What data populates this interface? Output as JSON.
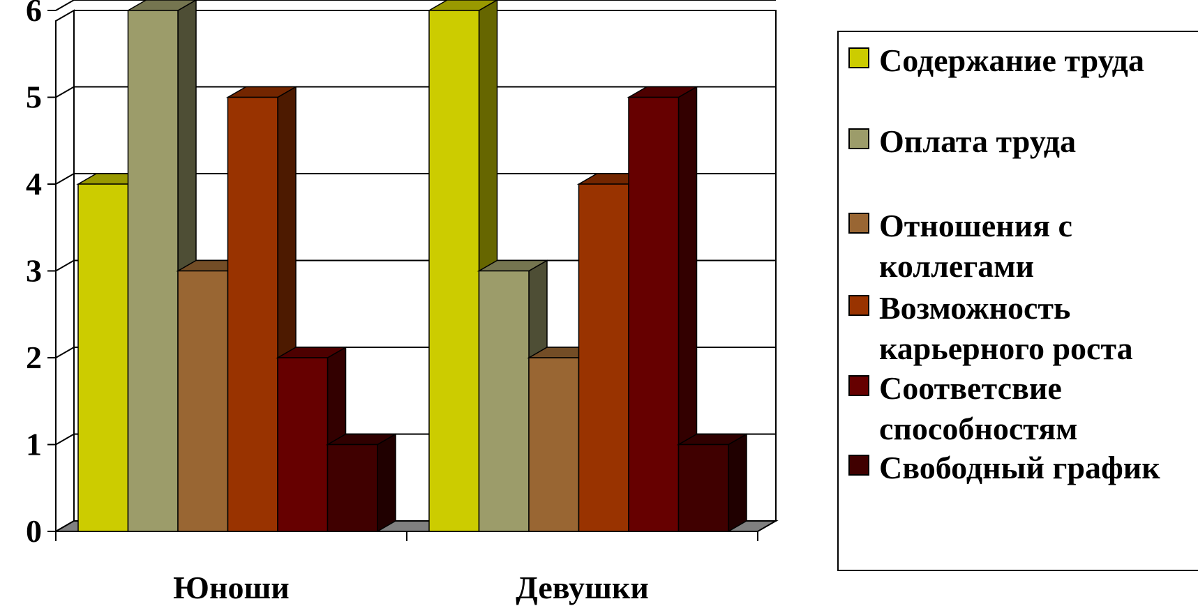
{
  "chart_data": {
    "type": "bar",
    "categories": [
      "Юноши",
      "Девушки"
    ],
    "series": [
      {
        "name": "Содержание труда",
        "values": [
          4,
          6
        ],
        "color": "#CCCC00"
      },
      {
        "name": "Оплата труда",
        "values": [
          6,
          3
        ],
        "color": "#9C9C6A"
      },
      {
        "name": "Отношения с коллегами",
        "values": [
          3,
          2
        ],
        "color": "#996633"
      },
      {
        "name": "Возможность карьерного роста",
        "values": [
          5,
          4
        ],
        "color": "#993300"
      },
      {
        "name": "Соответсвие способностям",
        "values": [
          2,
          5
        ],
        "color": "#660000"
      },
      {
        "name": "Свободный график",
        "values": [
          1,
          1
        ],
        "color": "#400000"
      }
    ],
    "y_ticks": [
      "0",
      "1",
      "2",
      "3",
      "4",
      "5",
      "6"
    ],
    "ylim": [
      0,
      6
    ],
    "grid": true,
    "legend_position": "right",
    "style": "3d"
  },
  "legend": {
    "items": [
      {
        "label": "Содержание труда",
        "color": "#CCCC00"
      },
      {
        "label": "Оплата труда",
        "color": "#9C9C6A"
      },
      {
        "label": "Отношения с коллегами",
        "color": "#996633"
      },
      {
        "label": "Возможность карьерного роста",
        "color": "#993300"
      },
      {
        "label": "Соответсвие способностям",
        "color": "#660000"
      },
      {
        "label": "Свободный график",
        "color": "#400000"
      }
    ]
  }
}
